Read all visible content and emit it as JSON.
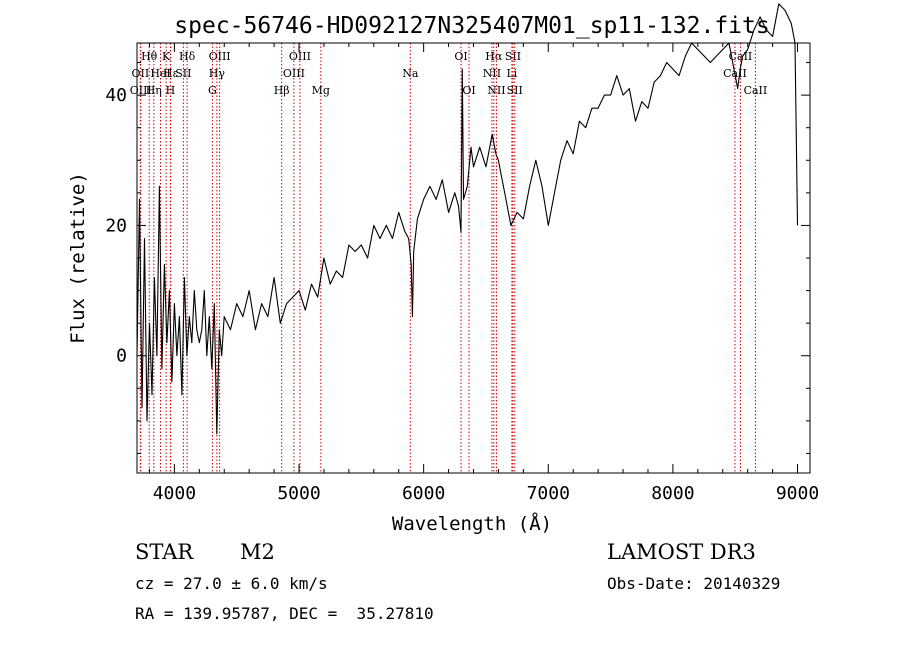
{
  "chart_data": {
    "type": "line",
    "title": "spec-56746-HD092127N325407M01_sp11-132.fits",
    "xlabel": "Wavelength (Å)",
    "ylabel": "Flux (relative)",
    "xlim": [
      3700,
      9100
    ],
    "ylim": [
      -18,
      48
    ],
    "xticks": [
      4000,
      5000,
      6000,
      7000,
      8000,
      9000
    ],
    "yticks": [
      0,
      20,
      40
    ],
    "grid": false,
    "series": [
      {
        "name": "flux",
        "color": "#000000",
        "x": [
          3700,
          3720,
          3740,
          3760,
          3780,
          3800,
          3820,
          3840,
          3860,
          3880,
          3900,
          3920,
          3940,
          3960,
          3980,
          4000,
          4020,
          4040,
          4060,
          4080,
          4100,
          4120,
          4140,
          4160,
          4180,
          4200,
          4220,
          4240,
          4260,
          4280,
          4300,
          4320,
          4340,
          4360,
          4380,
          4400,
          4450,
          4500,
          4550,
          4600,
          4650,
          4700,
          4750,
          4800,
          4850,
          4900,
          4950,
          5000,
          5050,
          5100,
          5150,
          5200,
          5250,
          5300,
          5350,
          5400,
          5450,
          5500,
          5550,
          5600,
          5650,
          5700,
          5750,
          5800,
          5850,
          5880,
          5900,
          5910,
          5920,
          5950,
          6000,
          6050,
          6100,
          6150,
          6200,
          6250,
          6280,
          6300,
          6310,
          6320,
          6350,
          6380,
          6400,
          6450,
          6500,
          6550,
          6580,
          6600,
          6620,
          6650,
          6700,
          6750,
          6800,
          6850,
          6900,
          6950,
          7000,
          7050,
          7100,
          7150,
          7200,
          7250,
          7300,
          7350,
          7400,
          7450,
          7500,
          7550,
          7600,
          7650,
          7700,
          7750,
          7800,
          7850,
          7900,
          7950,
          8000,
          8050,
          8100,
          8150,
          8200,
          8250,
          8300,
          8350,
          8400,
          8450,
          8500,
          8520,
          8540,
          8560,
          8600,
          8650,
          8700,
          8750,
          8800,
          8850,
          8900,
          8950,
          8980,
          9000
        ],
        "values": [
          0,
          24,
          -8,
          18,
          -10,
          5,
          -6,
          12,
          0,
          26,
          -2,
          14,
          2,
          10,
          -4,
          8,
          0,
          6,
          -6,
          12,
          0,
          6,
          2,
          10,
          4,
          2,
          4,
          10,
          0,
          6,
          -2,
          8,
          -12,
          4,
          0,
          6,
          4,
          8,
          6,
          10,
          4,
          8,
          6,
          12,
          5,
          8,
          9,
          10,
          7,
          11,
          9,
          15,
          11,
          13,
          12,
          17,
          16,
          17,
          15,
          20,
          18,
          20,
          18,
          22,
          19,
          18,
          14,
          6,
          16,
          21,
          24,
          26,
          24,
          27,
          22,
          25,
          23,
          19,
          44,
          24,
          26,
          32,
          29,
          32,
          29,
          34,
          31,
          30,
          28,
          25,
          20,
          22,
          21,
          26,
          30,
          26,
          20,
          25,
          30,
          33,
          31,
          36,
          35,
          38,
          38,
          40,
          40,
          43,
          40,
          41,
          36,
          39,
          38,
          42,
          43,
          45,
          44,
          43,
          46,
          48,
          47,
          46,
          45,
          46,
          47,
          48,
          43,
          41,
          44,
          46,
          47,
          50,
          52,
          50,
          49,
          54,
          53,
          51,
          48,
          20
        ]
      }
    ],
    "lines": [
      {
        "name": "Hθ",
        "x": 3798,
        "row": 0
      },
      {
        "name": "OII",
        "x": 3727,
        "row": 1
      },
      {
        "name": "OIII",
        "x": 3730,
        "row": 2
      },
      {
        "name": "K",
        "x": 3934,
        "row": 0
      },
      {
        "name": "Hε",
        "x": 3970,
        "row": 1
      },
      {
        "name": "HeI",
        "x": 3889,
        "row": 1
      },
      {
        "name": "Hη",
        "x": 3835,
        "row": 2
      },
      {
        "name": "H",
        "x": 3968,
        "row": 2
      },
      {
        "name": "Hδ",
        "x": 4102,
        "row": 0
      },
      {
        "name": "SII",
        "x": 4072,
        "row": 1
      },
      {
        "name": "OIII",
        "x": 4363,
        "row": 0
      },
      {
        "name": "Hγ",
        "x": 4341,
        "row": 1
      },
      {
        "name": "G",
        "x": 4305,
        "row": 2
      },
      {
        "name": "OIII",
        "x": 5007,
        "row": 0
      },
      {
        "name": "OIII",
        "x": 4959,
        "row": 1
      },
      {
        "name": "Hβ",
        "x": 4861,
        "row": 2
      },
      {
        "name": "Mg",
        "x": 5175,
        "row": 2
      },
      {
        "name": "Na",
        "x": 5893,
        "row": 1
      },
      {
        "name": "OI",
        "x": 6300,
        "row": 0
      },
      {
        "name": "OI",
        "x": 6364,
        "row": 2
      },
      {
        "name": "Hα",
        "x": 6563,
        "row": 0
      },
      {
        "name": "SII",
        "x": 6717,
        "row": 0
      },
      {
        "name": "NII",
        "x": 6548,
        "row": 1
      },
      {
        "name": "Li",
        "x": 6708,
        "row": 1
      },
      {
        "name": "NII",
        "x": 6584,
        "row": 2
      },
      {
        "name": "SII",
        "x": 6731,
        "row": 2
      },
      {
        "name": "CaII",
        "x": 8542,
        "row": 0
      },
      {
        "name": "CaII",
        "x": 8498,
        "row": 1
      },
      {
        "name": "CaII",
        "x": 8662,
        "row": 2
      }
    ]
  },
  "info": {
    "object_class": "STAR",
    "subclass": "M2",
    "survey": "LAMOST DR3",
    "cz": "cz = 27.0 ± 6.0 km/s",
    "obs_date": "Obs-Date: 20140329",
    "coords": "RA = 139.95787, DEC =  35.27810"
  }
}
